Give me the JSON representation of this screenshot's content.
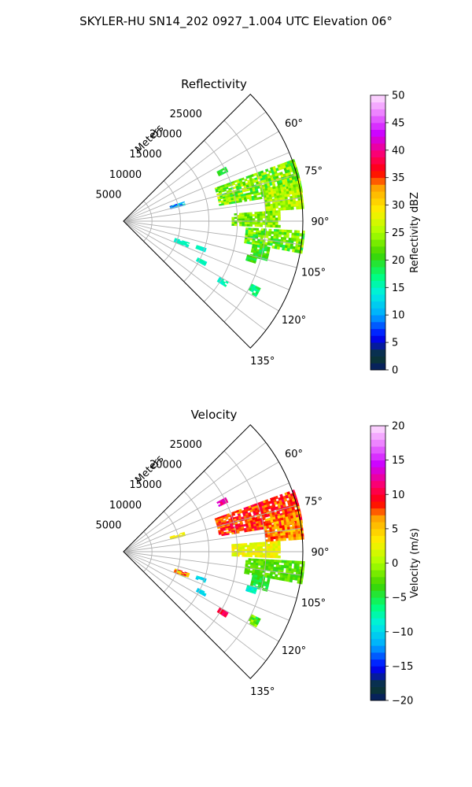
{
  "figure": {
    "suptitle": "SKYLER-HU  SN14_202  0927_1.004 UTC Elevation 06°"
  },
  "chart_data": [
    {
      "type": "heatmap",
      "subtype": "polar sector (PPI)",
      "title": "Reflectivity",
      "range_axis_label": "Meters",
      "range_ticks": [
        5000,
        10000,
        15000,
        20000,
        25000
      ],
      "range_tick_labels": [
        "5000",
        "10000",
        "15000",
        "20000",
        "25000"
      ],
      "range_max": 31500,
      "azimuth_range_deg": [
        45,
        135
      ],
      "azimuth_ticks_deg": [
        60,
        75,
        90,
        105,
        120,
        135
      ],
      "azimuth_tick_labels": [
        "60°",
        "75°",
        "90°",
        "105°",
        "120°",
        "135°"
      ],
      "grid": true,
      "colorbar": {
        "label": "Reflectivity dBZ",
        "min": 0,
        "max": 50,
        "ticks": [
          0,
          5,
          10,
          15,
          20,
          25,
          30,
          35,
          40,
          45,
          50
        ],
        "tick_labels": [
          "0",
          "5",
          "10",
          "15",
          "20",
          "25",
          "30",
          "35",
          "40",
          "45",
          "50"
        ]
      },
      "echoes": [
        {
          "az": [
            70,
            80
          ],
          "r": [
            17000,
            31500
          ],
          "value": [
            18,
            28
          ]
        },
        {
          "az": [
            77,
            86
          ],
          "r": [
            25000,
            31500
          ],
          "value": [
            22,
            28
          ]
        },
        {
          "az": [
            86,
            92
          ],
          "r": [
            19000,
            27500
          ],
          "value": [
            20,
            27
          ]
        },
        {
          "az": [
            93,
            100
          ],
          "r": [
            21500,
            31500
          ],
          "value": [
            18,
            27
          ]
        },
        {
          "az": [
            62,
            64
          ],
          "r": [
            18500,
            20000
          ],
          "value": [
            18,
            21
          ]
        },
        {
          "az": [
            72,
            75
          ],
          "r": [
            8500,
            11000
          ],
          "value": [
            5,
            15
          ]
        },
        {
          "az": [
            100,
            105
          ],
          "r": [
            23000,
            26000
          ],
          "value": [
            17,
            24
          ]
        },
        {
          "az": [
            105,
            107
          ],
          "r": [
            22500,
            24000
          ],
          "value": [
            18,
            22
          ]
        },
        {
          "az": [
            116,
            119
          ],
          "r": [
            25000,
            26500
          ],
          "value": [
            15,
            19
          ]
        },
        {
          "az": [
            108,
            112
          ],
          "r": [
            9500,
            12000
          ],
          "value": [
            13,
            16
          ]
        },
        {
          "az": [
            108,
            110
          ],
          "r": [
            13500,
            15000
          ],
          "value": [
            14,
            16
          ]
        },
        {
          "az": [
            116,
            118
          ],
          "r": [
            14500,
            16000
          ],
          "value": [
            14,
            16
          ]
        },
        {
          "az": [
            120,
            122
          ],
          "r": [
            19500,
            21000
          ],
          "value": [
            14,
            16
          ]
        }
      ]
    },
    {
      "type": "heatmap",
      "subtype": "polar sector (PPI)",
      "title": "Velocity",
      "range_axis_label": "Meters",
      "range_ticks": [
        5000,
        10000,
        15000,
        20000,
        25000
      ],
      "range_tick_labels": [
        "5000",
        "10000",
        "15000",
        "20000",
        "25000"
      ],
      "range_max": 31500,
      "azimuth_range_deg": [
        45,
        135
      ],
      "azimuth_ticks_deg": [
        60,
        75,
        90,
        105,
        120,
        135
      ],
      "azimuth_tick_labels": [
        "60°",
        "75°",
        "90°",
        "105°",
        "120°",
        "135°"
      ],
      "grid": true,
      "colorbar": {
        "label": "Velocity (m/s)",
        "min": -20,
        "max": 20,
        "ticks": [
          -20,
          -15,
          -10,
          -5,
          0,
          5,
          10,
          15,
          20
        ],
        "tick_labels": [
          "−20",
          "−15",
          "−10",
          "−5",
          "0",
          "5",
          "10",
          "15",
          "20"
        ]
      },
      "echoes": [
        {
          "az": [
            70,
            80
          ],
          "r": [
            17000,
            31500
          ],
          "value": [
            6,
            11
          ]
        },
        {
          "az": [
            77,
            86
          ],
          "r": [
            25000,
            31500
          ],
          "value": [
            4,
            9
          ]
        },
        {
          "az": [
            86,
            92
          ],
          "r": [
            19000,
            27500
          ],
          "value": [
            1,
            4
          ]
        },
        {
          "az": [
            93,
            100
          ],
          "r": [
            21500,
            31500
          ],
          "value": [
            -4,
            -1
          ]
        },
        {
          "az": [
            62,
            64
          ],
          "r": [
            18500,
            20000
          ],
          "value": [
            11,
            14
          ]
        },
        {
          "az": [
            72,
            75
          ],
          "r": [
            8500,
            11000
          ],
          "value": [
            2,
            4
          ]
        },
        {
          "az": [
            100,
            105
          ],
          "r": [
            23000,
            26000
          ],
          "value": [
            -6,
            -3
          ]
        },
        {
          "az": [
            105,
            107
          ],
          "r": [
            22500,
            24000
          ],
          "value": [
            -10,
            -7
          ]
        },
        {
          "az": [
            116,
            119
          ],
          "r": [
            25000,
            26500
          ],
          "value": [
            -7,
            2
          ]
        },
        {
          "az": [
            108,
            112
          ],
          "r": [
            9500,
            12000
          ],
          "value": [
            -1,
            11
          ]
        },
        {
          "az": [
            108,
            110
          ],
          "r": [
            13500,
            15000
          ],
          "value": [
            -11,
            -9
          ]
        },
        {
          "az": [
            116,
            118
          ],
          "r": [
            14500,
            16000
          ],
          "value": [
            -11,
            -9
          ]
        },
        {
          "az": [
            120,
            122
          ],
          "r": [
            19500,
            21000
          ],
          "value": [
            9,
            12
          ]
        }
      ]
    }
  ]
}
